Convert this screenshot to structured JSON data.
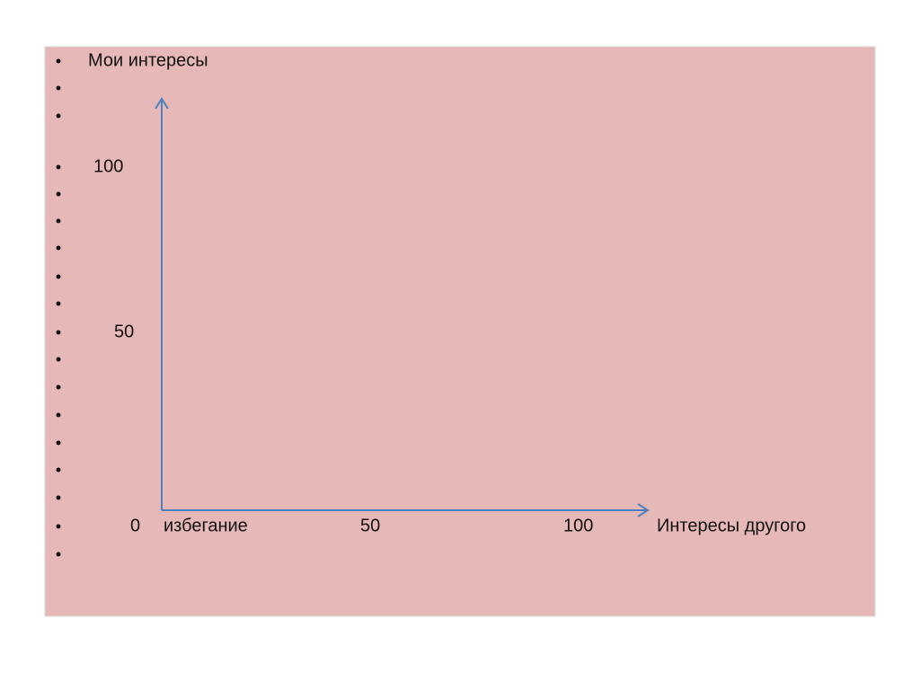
{
  "y_axis_label": "Мои интересы",
  "y_ticks": [
    "100",
    "50"
  ],
  "origin": "0",
  "x_axis_labels": [
    "избегание",
    "50",
    "100"
  ],
  "x_axis_title": "Интересы другого"
}
